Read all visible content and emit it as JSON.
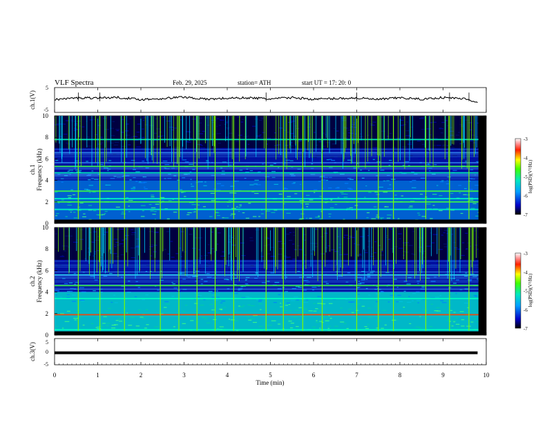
{
  "header": {
    "title": "VLF  Spectra",
    "date": "Feb. 29, 2025",
    "station": "station= ATH",
    "start": "start  UT  =    17: 20: 0"
  },
  "chart_data": [
    {
      "type": "line",
      "panel": "ch1-waveform",
      "ylabel": "ch.1(V)",
      "ylim": [
        -5,
        5
      ],
      "yticks": [
        "5",
        "-5"
      ],
      "x": [
        0,
        0.5,
        1,
        1.5,
        2,
        2.5,
        3,
        3.5,
        4,
        4.5,
        5,
        5.5,
        6,
        6.5,
        7,
        7.5,
        8,
        8.5,
        9,
        9.5,
        9.8
      ],
      "values": [
        0.2,
        0.8,
        0.9,
        1.0,
        0.2,
        0.6,
        1.2,
        0.3,
        0.7,
        0.9,
        0.4,
        1.0,
        0.3,
        0.6,
        0.8,
        0.2,
        0.9,
        0.3,
        1.0,
        0.5,
        -0.8
      ]
    },
    {
      "type": "heatmap",
      "panel": "ch1-spectrogram",
      "ylabel": "ch.1\nFrequency (kHz)",
      "ylim": [
        0,
        10
      ],
      "yticks": [
        "0",
        "2",
        "4",
        "6",
        "8",
        "10"
      ],
      "colorbar": {
        "label": "log(PSD)(V²/Hz)",
        "range": [
          -7,
          -3
        ],
        "ticks": [
          "-3",
          "-4",
          "-5",
          "-6",
          "-7"
        ]
      },
      "spheric_times_min": [
        0.55,
        1.05,
        1.62,
        2.45,
        2.88,
        3.3,
        3.72,
        4.15,
        4.9,
        5.3,
        5.75,
        6.2,
        7.0,
        7.5,
        7.85,
        8.6,
        9.15,
        9.6
      ],
      "bright_bands_khz": [
        1.3,
        2.0,
        2.3,
        3.0,
        4.7,
        5.3,
        7.8
      ]
    },
    {
      "type": "heatmap",
      "panel": "ch2-spectrogram",
      "ylabel": "ch.2\nFrequency (kHz)",
      "ylim": [
        0,
        10
      ],
      "yticks": [
        "0",
        "2",
        "4",
        "6",
        "8",
        "10"
      ],
      "colorbar": {
        "label": "log(PSD)(V²/Hz)",
        "range": [
          -7,
          -3
        ],
        "ticks": [
          "-3",
          "-4",
          "-5",
          "-6",
          "-7"
        ]
      },
      "spheric_times_min": [
        0.55,
        1.05,
        1.62,
        2.45,
        2.88,
        3.3,
        3.72,
        4.15,
        4.9,
        5.3,
        5.75,
        6.2,
        7.0,
        7.5,
        7.85,
        8.6,
        9.15,
        9.6
      ],
      "bright_bands_khz": [
        0.5,
        1.9,
        3.4,
        4.6,
        5.6
      ]
    },
    {
      "type": "line",
      "panel": "ch3-waveform",
      "ylabel": "ch.3(V)",
      "ylim": [
        -5,
        5
      ],
      "yticks": [
        "5",
        "0",
        "-5"
      ],
      "x": [
        0,
        9.8
      ],
      "values": [
        -0.5,
        -0.5
      ]
    }
  ],
  "xaxis": {
    "label": "Time  (min)",
    "range": [
      0,
      10
    ],
    "ticks": [
      "0",
      "1",
      "2",
      "3",
      "4",
      "5",
      "6",
      "7",
      "8",
      "9",
      "10"
    ]
  },
  "colors": {
    "background": "#000080",
    "spheric": "#7cfc00",
    "band": "#00e0a0",
    "waveform": "#000000"
  }
}
